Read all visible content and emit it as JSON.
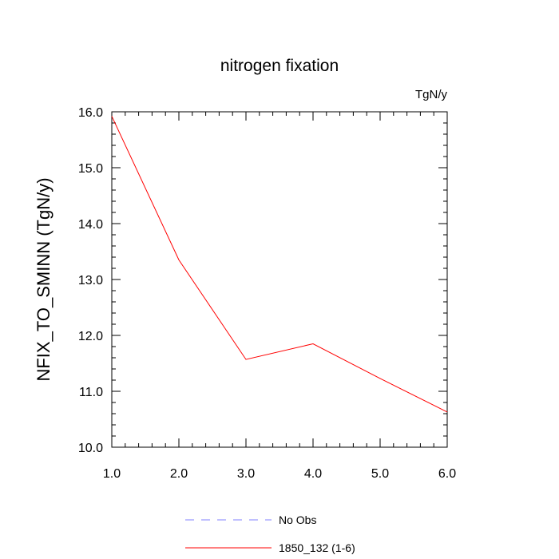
{
  "chart_data": {
    "type": "line",
    "title": "nitrogen fixation",
    "units_label": "TgN/y",
    "xlabel": "",
    "ylabel": "NFIX_TO_SMINN  (TgN/y)",
    "xlim": [
      1.0,
      6.0
    ],
    "ylim": [
      10.0,
      16.0
    ],
    "x_ticks": [
      "1.0",
      "2.0",
      "3.0",
      "4.0",
      "5.0",
      "6.0"
    ],
    "y_ticks": [
      "10.0",
      "11.0",
      "12.0",
      "13.0",
      "14.0",
      "15.0",
      "16.0"
    ],
    "series": [
      {
        "name": "1850_132 (1-6)",
        "color": "#ff0000",
        "style": "solid",
        "x": [
          1.0,
          2.0,
          3.0,
          4.0,
          5.0,
          6.0
        ],
        "y": [
          15.92,
          13.35,
          11.57,
          11.85,
          11.23,
          10.63
        ]
      }
    ],
    "legend": [
      {
        "label": "No Obs",
        "color": "#8080ff",
        "style": "dashed"
      },
      {
        "label": "1850_132 (1-6)",
        "color": "#ff0000",
        "style": "solid"
      }
    ],
    "legend_position": "bottom-center",
    "grid": false
  }
}
